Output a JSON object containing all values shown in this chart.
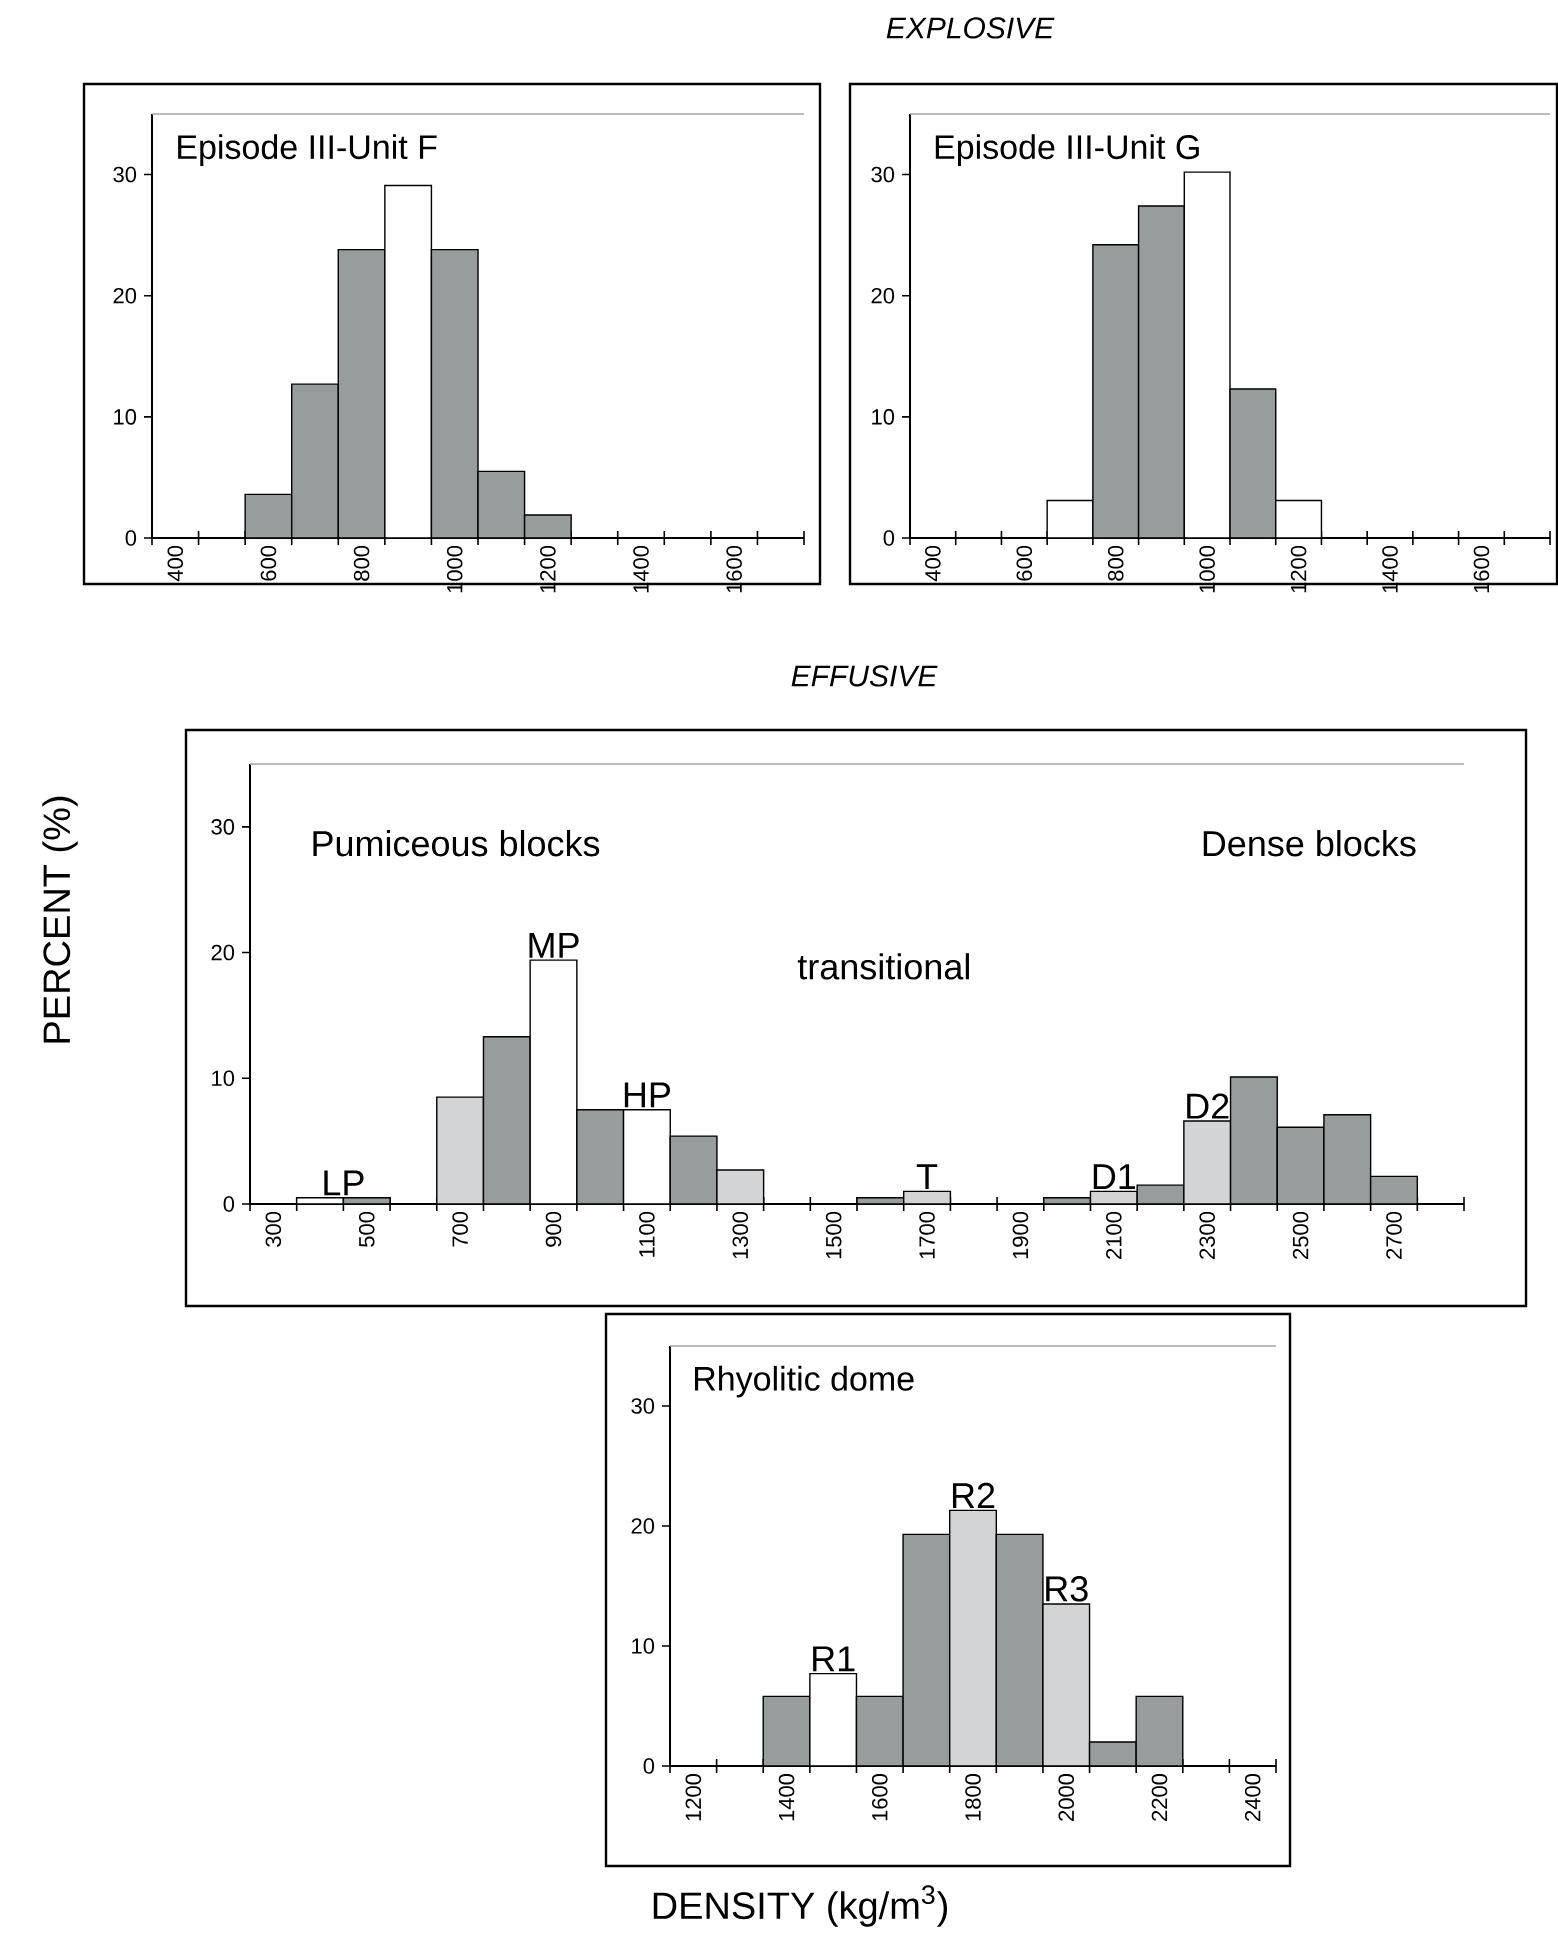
{
  "chart_data": [
    {
      "type": "histogram",
      "subtitle": "Episode III-Unit F",
      "bins": [
        350,
        450,
        550,
        650,
        750,
        850,
        950,
        1050,
        1150,
        1250,
        1350,
        1450,
        1550,
        1650,
        1750
      ],
      "values": [
        0,
        0,
        3.6,
        12.7,
        23.8,
        29.1,
        23.8,
        5.5,
        1.9,
        0,
        0,
        0,
        0,
        0
      ],
      "colors": [
        "#979c9d",
        "#979c9d",
        "#979c9d",
        "#979c9d",
        "#979c9d",
        "#ffffff",
        "#979c9d",
        "#979c9d",
        "#979c9d",
        "#979c9d",
        "#979c9d",
        "#979c9d",
        "#979c9d",
        "#979c9d"
      ],
      "xlim": [
        350,
        1750
      ],
      "xticks": [
        {
          "value": 350,
          "label": null
        },
        400,
        {
          "value": 450,
          "label": null
        },
        {
          "value": 550,
          "label": null
        },
        600,
        {
          "value": 650,
          "label": null
        },
        {
          "value": 750,
          "label": null
        },
        800,
        {
          "value": 850,
          "label": null
        },
        {
          "value": 950,
          "label": null
        },
        1000,
        {
          "value": 1050,
          "label": null
        },
        {
          "value": 1150,
          "label": null
        },
        1200,
        {
          "value": 1250,
          "label": null
        },
        {
          "value": 1350,
          "label": null
        },
        1400,
        {
          "value": 1450,
          "label": null
        },
        {
          "value": 1550,
          "label": null
        },
        1600,
        {
          "value": 1650,
          "label": null
        },
        {
          "value": 1750,
          "label": null
        }
      ],
      "ylim": [
        0,
        35
      ],
      "yticks": [
        0,
        10,
        20,
        30
      ]
    },
    {
      "type": "histogram",
      "title": "EXPLOSIVE",
      "subtitle": "Episode III-Unit G",
      "bins": [
        350,
        450,
        550,
        650,
        750,
        850,
        950,
        1050,
        1150,
        1250,
        1350,
        1450,
        1550,
        1650,
        1750
      ],
      "values": [
        0,
        0,
        0,
        3.1,
        24.2,
        27.4,
        30.2,
        12.3,
        3.1,
        0,
        0,
        0,
        0,
        0
      ],
      "colors": [
        "#979c9d",
        "#979c9d",
        "#979c9d",
        "#ffffff",
        "#979c9d",
        "#979c9d",
        "#ffffff",
        "#979c9d",
        "#ffffff",
        "#979c9d",
        "#979c9d",
        "#979c9d",
        "#979c9d",
        "#979c9d"
      ],
      "xlim": [
        350,
        1750
      ],
      "xticks": [
        {
          "value": 350,
          "label": null
        },
        400,
        {
          "value": 450,
          "label": null
        },
        {
          "value": 550,
          "label": null
        },
        600,
        {
          "value": 650,
          "label": null
        },
        {
          "value": 750,
          "label": null
        },
        800,
        {
          "value": 850,
          "label": null
        },
        {
          "value": 950,
          "label": null
        },
        1000,
        {
          "value": 1050,
          "label": null
        },
        {
          "value": 1150,
          "label": null
        },
        1200,
        {
          "value": 1250,
          "label": null
        },
        {
          "value": 1350,
          "label": null
        },
        1400,
        {
          "value": 1450,
          "label": null
        },
        {
          "value": 1550,
          "label": null
        },
        1600,
        {
          "value": 1650,
          "label": null
        },
        {
          "value": 1750,
          "label": null
        }
      ],
      "ylim": [
        0,
        35
      ],
      "yticks": [
        0,
        10,
        20,
        30
      ]
    },
    {
      "type": "histogram",
      "title": "EFFUSIVE",
      "ylabel": "PERCENT (%)",
      "bins": [
        250,
        350,
        450,
        550,
        650,
        750,
        850,
        950,
        1050,
        1150,
        1250,
        1350,
        1450,
        1550,
        1650,
        1750,
        1850,
        1950,
        2050,
        2150,
        2250,
        2350,
        2450,
        2550,
        2650,
        2750,
        2850
      ],
      "values": [
        0,
        0.5,
        0.5,
        0,
        8.5,
        13.3,
        19.4,
        7.5,
        7.5,
        5.4,
        2.7,
        0,
        0,
        0.5,
        1.0,
        0,
        0,
        0.5,
        1.0,
        1.5,
        6.6,
        10.1,
        6.1,
        7.1,
        2.2,
        0
      ],
      "colors": [
        "#979c9d",
        "#ffffff",
        "#979c9d",
        "#979c9d",
        "#d2d4d5",
        "#979c9d",
        "#ffffff",
        "#979c9d",
        "#ffffff",
        "#979c9d",
        "#d2d4d5",
        "#979c9d",
        "#979c9d",
        "#979c9d",
        "#d2d4d5",
        "#979c9d",
        "#979c9d",
        "#979c9d",
        "#d2d4d5",
        "#979c9d",
        "#d2d4d5",
        "#979c9d",
        "#979c9d",
        "#979c9d",
        "#979c9d",
        "#979c9d"
      ],
      "xlim": [
        250,
        2850
      ],
      "xticks": [
        {
          "value": 250,
          "label": null
        },
        300,
        {
          "value": 350,
          "label": null
        },
        {
          "value": 450,
          "label": null
        },
        500,
        {
          "value": 550,
          "label": null
        },
        {
          "value": 650,
          "label": null
        },
        700,
        {
          "value": 750,
          "label": null
        },
        {
          "value": 850,
          "label": null
        },
        900,
        {
          "value": 950,
          "label": null
        },
        {
          "value": 1050,
          "label": null
        },
        1100,
        {
          "value": 1150,
          "label": null
        },
        {
          "value": 1250,
          "label": null
        },
        1300,
        {
          "value": 1350,
          "label": null
        },
        {
          "value": 1450,
          "label": null
        },
        1500,
        {
          "value": 1550,
          "label": null
        },
        {
          "value": 1650,
          "label": null
        },
        1700,
        {
          "value": 1750,
          "label": null
        },
        {
          "value": 1850,
          "label": null
        },
        1900,
        {
          "value": 1950,
          "label": null
        },
        {
          "value": 2050,
          "label": null
        },
        2100,
        {
          "value": 2150,
          "label": null
        },
        {
          "value": 2250,
          "label": null
        },
        2300,
        {
          "value": 2350,
          "label": null
        },
        {
          "value": 2450,
          "label": null
        },
        2500,
        {
          "value": 2550,
          "label": null
        },
        {
          "value": 2650,
          "label": null
        },
        2700,
        {
          "value": 2750,
          "label": null
        },
        {
          "value": 2850,
          "label": null
        }
      ],
      "ylim": [
        0,
        35
      ],
      "yticks": [
        0,
        10,
        20,
        30
      ],
      "annotations": [
        "Pumiceous blocks",
        "transitional",
        "Dense blocks",
        {
          "text": "LP",
          "x": 450,
          "y": 0.5
        },
        {
          "text": "MP",
          "x": 900,
          "y": 19.4
        },
        {
          "text": "HP",
          "x": 1100,
          "y": 7.5
        },
        {
          "text": "T",
          "x": 1700,
          "y": 1.0
        },
        {
          "text": "D1",
          "x": 2100,
          "y": 1.0
        },
        {
          "text": "D2",
          "x": 2300,
          "y": 6.6
        }
      ]
    },
    {
      "type": "histogram",
      "subtitle": "Rhyolitic dome",
      "xlabel": "DENSITY (kg/m$^{3}$)",
      "bins": [
        1150,
        1250,
        1350,
        1450,
        1550,
        1650,
        1750,
        1850,
        1950,
        2050,
        2150,
        2250,
        2350,
        2450
      ],
      "values": [
        0,
        0,
        5.8,
        7.7,
        5.8,
        19.3,
        21.3,
        19.3,
        13.5,
        2.0,
        5.8,
        0,
        0
      ],
      "colors": [
        "#979c9d",
        "#979c9d",
        "#979c9d",
        "#ffffff",
        "#979c9d",
        "#979c9d",
        "#d2d4d5",
        "#979c9d",
        "#d2d4d5",
        "#979c9d",
        "#979c9d",
        "#979c9d",
        "#979c9d"
      ],
      "xlim": [
        1150,
        2450
      ],
      "xticks": [
        {
          "value": 1150,
          "label": null
        },
        1200,
        {
          "value": 1250,
          "label": null
        },
        {
          "value": 1350,
          "label": null
        },
        1400,
        {
          "value": 1450,
          "label": null
        },
        {
          "value": 1550,
          "label": null
        },
        1600,
        {
          "value": 1650,
          "label": null
        },
        {
          "value": 1750,
          "label": null
        },
        1800,
        {
          "value": 1850,
          "label": null
        },
        {
          "value": 1950,
          "label": null
        },
        2000,
        {
          "value": 2050,
          "label": null
        },
        {
          "value": 2150,
          "label": null
        },
        2200,
        {
          "value": 2250,
          "label": null
        },
        {
          "value": 2350,
          "label": null
        },
        2400,
        {
          "value": 2450,
          "label": null
        }
      ],
      "ylim": [
        0,
        35
      ],
      "yticks": [
        0,
        10,
        20,
        30
      ],
      "annotations": [
        {
          "text": "R1",
          "x": 1500,
          "y": 7.7
        },
        {
          "text": "R2",
          "x": 1800,
          "y": 21.3
        },
        {
          "text": "R3",
          "x": 2000,
          "y": 13.5
        }
      ]
    }
  ]
}
